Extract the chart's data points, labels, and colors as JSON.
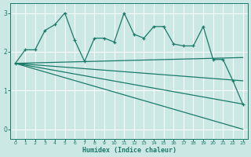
{
  "title": "",
  "xlabel": "Humidex (Indice chaleur)",
  "bg_color": "#cce8e4",
  "grid_color": "#ffffff",
  "line_color": "#1a7a6a",
  "xlim": [
    -0.5,
    23.5
  ],
  "ylim": [
    -0.25,
    3.25
  ],
  "yticks": [
    0,
    1,
    2,
    3
  ],
  "xticks": [
    0,
    1,
    2,
    3,
    4,
    5,
    6,
    7,
    8,
    9,
    10,
    11,
    12,
    13,
    14,
    15,
    16,
    17,
    18,
    19,
    20,
    21,
    22,
    23
  ],
  "jagged_x": [
    0,
    1,
    2,
    3,
    4,
    5,
    6,
    7,
    8,
    9,
    10,
    11,
    12,
    13,
    14,
    15,
    16,
    17,
    18,
    19,
    20,
    21,
    22,
    23
  ],
  "jagged_y": [
    1.7,
    2.05,
    2.05,
    2.55,
    2.7,
    3.0,
    2.3,
    1.75,
    2.35,
    2.35,
    2.25,
    3.0,
    2.45,
    2.35,
    2.65,
    2.65,
    2.2,
    2.15,
    2.15,
    2.65,
    1.8,
    1.8,
    1.25,
    0.65
  ],
  "straight_lines": [
    {
      "x": [
        0,
        23
      ],
      "y": [
        1.7,
        0.0
      ]
    },
    {
      "x": [
        0,
        23
      ],
      "y": [
        1.7,
        0.65
      ]
    },
    {
      "x": [
        0,
        23
      ],
      "y": [
        1.7,
        1.25
      ]
    },
    {
      "x": [
        0,
        23
      ],
      "y": [
        1.7,
        1.85
      ]
    }
  ]
}
